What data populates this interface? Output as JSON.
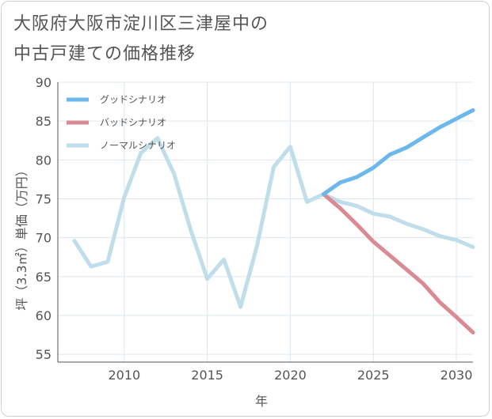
{
  "title": {
    "line1": "大阪府大阪市淀川区三津屋中の",
    "line2": "中古戸建ての価格推移"
  },
  "colors": {
    "good": "#6cb8ec",
    "bad": "#da8a93",
    "normal": "#bfdeea",
    "grid": "#dde7ee",
    "axis": "#555555"
  },
  "chart_data": {
    "type": "line",
    "title": "大阪府大阪市淀川区三津屋中の中古戸建ての価格推移",
    "xlabel": "年",
    "ylabel": "坪（3.3㎡）単価（万円）",
    "xlim": [
      2006,
      2031
    ],
    "ylim": [
      54,
      90
    ],
    "x_ticks": [
      2010,
      2015,
      2020,
      2025,
      2030
    ],
    "y_ticks": [
      55,
      60,
      65,
      70,
      75,
      80,
      85,
      90
    ],
    "grid": true,
    "legend_position": "top-left",
    "series": [
      {
        "name": "グッドシナリオ",
        "color_key": "good",
        "x": [
          2022,
          2023,
          2024,
          2025,
          2026,
          2027,
          2028,
          2029,
          2030,
          2031
        ],
        "y": [
          75.6,
          77.1,
          77.8,
          79.0,
          80.7,
          81.6,
          82.9,
          84.2,
          85.3,
          86.4
        ]
      },
      {
        "name": "バッドシナリオ",
        "color_key": "bad",
        "x": [
          2022,
          2023,
          2024,
          2025,
          2026,
          2027,
          2028,
          2029,
          2030,
          2031
        ],
        "y": [
          75.6,
          73.8,
          71.7,
          69.5,
          67.7,
          65.9,
          64.1,
          61.7,
          59.8,
          57.8
        ]
      },
      {
        "name": "ノーマルシナリオ",
        "color_key": "normal",
        "x": [
          2007,
          2008,
          2009,
          2010,
          2011,
          2012,
          2013,
          2014,
          2015,
          2016,
          2017,
          2018,
          2019,
          2020,
          2021,
          2022,
          2023,
          2024,
          2025,
          2026,
          2027,
          2028,
          2029,
          2030,
          2031
        ],
        "y": [
          69.6,
          66.3,
          66.9,
          75.2,
          80.9,
          82.8,
          78.2,
          71.0,
          64.7,
          67.2,
          61.1,
          69.0,
          79.1,
          81.7,
          74.6,
          75.6,
          74.6,
          74.1,
          73.1,
          72.7,
          71.8,
          71.1,
          70.2,
          69.7,
          68.8
        ]
      }
    ]
  }
}
